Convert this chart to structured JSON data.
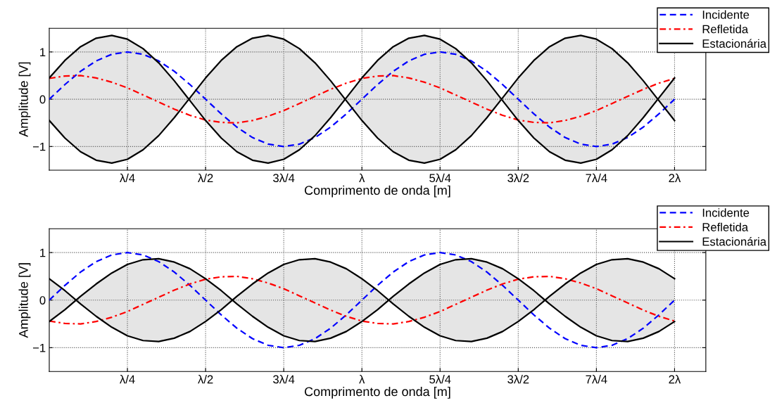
{
  "chart_data": [
    {
      "type": "line",
      "xlabel": "Comprimento de onda [m]",
      "ylabel": "Amplitude [V]",
      "categories": [
        null,
        null,
        null,
        null,
        null,
        "λ/4",
        null,
        null,
        null,
        null,
        "λ/2",
        null,
        null,
        null,
        null,
        "3λ/4",
        null,
        null,
        null,
        null,
        "λ",
        null,
        null,
        null,
        null,
        "5λ/4",
        null,
        null,
        null,
        null,
        "3λ/2",
        null,
        null,
        null,
        null,
        "7λ/4",
        null,
        null,
        null,
        null,
        "2λ",
        null,
        null
      ],
      "ylim": [
        -1.5,
        1.5
      ],
      "yticks": [
        {
          "value": -1,
          "label": "−1"
        },
        0,
        1
      ],
      "grid": true,
      "legend": "top right",
      "series": [
        {
          "name": "Incidente",
          "color": "#0000ff",
          "line_style": "dashed",
          "values": [
            0,
            0.31,
            0.59,
            0.81,
            0.95,
            1,
            0.95,
            0.81,
            0.59,
            0.31,
            0,
            -0.31,
            -0.59,
            -0.81,
            -0.95,
            -1,
            -0.95,
            -0.81,
            -0.59,
            -0.31,
            0,
            0.31,
            0.59,
            0.81,
            0.95,
            1,
            0.95,
            0.81,
            0.59,
            0.31,
            0,
            -0.31,
            -0.59,
            -0.81,
            -0.95,
            -1,
            -0.95,
            -0.81,
            -0.59,
            -0.31,
            0,
            null,
            null
          ]
        },
        {
          "name": "Refletida",
          "color": "#ff0000",
          "line_style": "dashdot",
          "values": [
            0.44,
            0.49,
            0.5,
            0.45,
            0.36,
            0.24,
            0.09,
            -0.06,
            -0.21,
            -0.34,
            -0.44,
            -0.49,
            -0.5,
            -0.45,
            -0.36,
            -0.24,
            -0.09,
            0.06,
            0.21,
            0.34,
            0.44,
            0.49,
            0.5,
            0.45,
            0.36,
            0.24,
            0.09,
            -0.06,
            -0.21,
            -0.34,
            -0.44,
            -0.49,
            -0.5,
            -0.45,
            -0.36,
            -0.24,
            -0.09,
            0.06,
            0.21,
            0.34,
            0.44,
            null,
            null
          ]
        },
        {
          "name": "Estacionária",
          "color": "#000000",
          "line_style": "solid",
          "values": [
            0.45,
            0.82,
            1.11,
            1.29,
            1.35,
            1.27,
            1.07,
            0.77,
            0.39,
            -0.03,
            -0.45,
            -0.82,
            -1.11,
            -1.29,
            -1.35,
            -1.27,
            -1.07,
            -0.77,
            -0.39,
            0.03,
            0.45,
            0.82,
            1.11,
            1.29,
            1.35,
            1.27,
            1.07,
            0.77,
            0.39,
            -0.03,
            -0.45,
            -0.82,
            -1.11,
            -1.29,
            -1.35,
            -1.27,
            -1.07,
            -0.77,
            -0.39,
            0.03,
            0.45,
            null,
            null
          ],
          "upper": [
            0.45,
            0.82,
            1.11,
            1.29,
            1.35,
            1.27,
            1.07,
            0.77,
            0.39,
            -0.03,
            -0.45,
            -0.82,
            -1.11,
            -1.29,
            -1.35,
            -1.27,
            -1.07,
            -0.77,
            -0.39,
            0.03,
            0.45,
            0.82,
            1.11,
            1.29,
            1.35,
            1.27,
            1.07,
            0.77,
            0.39,
            -0.03,
            -0.45,
            -0.82,
            -1.11,
            -1.29,
            -1.35,
            -1.27,
            -1.07,
            -0.77,
            -0.39,
            0.03,
            0.45,
            null,
            null
          ],
          "lower": [
            -0.45,
            -0.82,
            -1.11,
            -1.29,
            -1.35,
            -1.27,
            -1.07,
            -0.77,
            -0.39,
            0.03,
            0.45,
            0.82,
            1.11,
            1.29,
            1.35,
            1.27,
            1.07,
            0.77,
            0.39,
            -0.03,
            -0.45,
            -0.82,
            -1.11,
            -1.29,
            -1.35,
            -1.27,
            -1.07,
            -0.77,
            -0.39,
            0.03,
            0.45,
            0.82,
            1.11,
            1.29,
            1.35,
            1.27,
            1.07,
            0.77,
            0.39,
            -0.03,
            -0.45,
            null,
            null
          ]
        },
        {
          "color": "#000000",
          "line_style": "solid",
          "values": [
            -0.45,
            -0.82,
            -1.11,
            -1.29,
            -1.35,
            -1.27,
            -1.07,
            -0.77,
            -0.39,
            0.03,
            0.45,
            0.82,
            1.11,
            1.29,
            1.35,
            1.27,
            1.07,
            0.77,
            0.39,
            -0.03,
            -0.45,
            -0.82,
            -1.11,
            -1.29,
            -1.35,
            -1.27,
            -1.07,
            -0.77,
            -0.39,
            0.03,
            0.45,
            0.82,
            1.11,
            1.29,
            1.35,
            1.27,
            1.07,
            0.77,
            0.39,
            -0.03,
            -0.45,
            null,
            null
          ]
        }
      ]
    },
    {
      "type": "line",
      "xlabel": "Comprimento de onda [m]",
      "ylabel": "Amplitude [V]",
      "categories": [
        null,
        null,
        null,
        null,
        null,
        "λ/4",
        null,
        null,
        null,
        null,
        "λ/2",
        null,
        null,
        null,
        null,
        "3λ/4",
        null,
        null,
        null,
        null,
        "λ",
        null,
        null,
        null,
        null,
        "5λ/4",
        null,
        null,
        null,
        null,
        "3λ/2",
        null,
        null,
        null,
        null,
        "7λ/4",
        null,
        null,
        null,
        null,
        "2λ",
        null,
        null
      ],
      "ylim": [
        -1.5,
        1.5
      ],
      "yticks": [
        {
          "value": -1,
          "label": "−1"
        },
        0,
        1
      ],
      "grid": true,
      "legend": "top right",
      "series": [
        {
          "name": "Incidente",
          "color": "#0000ff",
          "line_style": "dashed",
          "values": [
            0,
            0.31,
            0.59,
            0.81,
            0.95,
            1,
            0.95,
            0.81,
            0.59,
            0.31,
            0,
            -0.31,
            -0.59,
            -0.81,
            -0.95,
            -1,
            -0.95,
            -0.81,
            -0.59,
            -0.31,
            0,
            0.31,
            0.59,
            0.81,
            0.95,
            1,
            0.95,
            0.81,
            0.59,
            0.31,
            0,
            -0.31,
            -0.59,
            -0.81,
            -0.95,
            -1,
            -0.95,
            -0.81,
            -0.59,
            -0.31,
            0,
            null,
            null
          ]
        },
        {
          "name": "Refletida",
          "color": "#ff0000",
          "line_style": "dashdot",
          "values": [
            -0.44,
            -0.49,
            -0.5,
            -0.45,
            -0.36,
            -0.24,
            -0.09,
            0.06,
            0.21,
            0.34,
            0.44,
            0.49,
            0.5,
            0.45,
            0.36,
            0.24,
            0.09,
            -0.06,
            -0.21,
            -0.34,
            -0.44,
            -0.49,
            -0.5,
            -0.45,
            -0.36,
            -0.24,
            -0.09,
            0.06,
            0.21,
            0.34,
            0.44,
            0.49,
            0.5,
            0.45,
            0.36,
            0.24,
            0.09,
            -0.06,
            -0.21,
            -0.34,
            -0.44,
            null,
            null
          ]
        },
        {
          "name": "Estacionária",
          "color": "#000000",
          "line_style": "solid",
          "values": [
            0.45,
            0.2,
            -0.08,
            -0.34,
            -0.57,
            -0.75,
            -0.85,
            -0.87,
            -0.8,
            -0.66,
            -0.45,
            -0.2,
            0.08,
            0.34,
            0.57,
            0.75,
            0.85,
            0.87,
            0.8,
            0.66,
            0.45,
            0.2,
            -0.08,
            -0.34,
            -0.57,
            -0.75,
            -0.85,
            -0.87,
            -0.8,
            -0.66,
            -0.45,
            -0.2,
            0.08,
            0.34,
            0.57,
            0.75,
            0.85,
            0.87,
            0.8,
            0.66,
            0.45,
            null,
            null
          ],
          "upper": [
            0.45,
            0.2,
            -0.08,
            -0.34,
            -0.57,
            -0.75,
            -0.85,
            -0.87,
            -0.8,
            -0.66,
            -0.45,
            -0.2,
            0.08,
            0.34,
            0.57,
            0.75,
            0.85,
            0.87,
            0.8,
            0.66,
            0.45,
            0.2,
            -0.08,
            -0.34,
            -0.57,
            -0.75,
            -0.85,
            -0.87,
            -0.8,
            -0.66,
            -0.45,
            -0.2,
            0.08,
            0.34,
            0.57,
            0.75,
            0.85,
            0.87,
            0.8,
            0.66,
            0.45,
            null,
            null
          ],
          "lower": [
            -0.45,
            -0.2,
            0.08,
            0.34,
            0.57,
            0.75,
            0.85,
            0.87,
            0.8,
            0.66,
            0.45,
            0.2,
            -0.08,
            -0.34,
            -0.57,
            -0.75,
            -0.85,
            -0.87,
            -0.8,
            -0.66,
            -0.45,
            -0.2,
            0.08,
            0.34,
            0.57,
            0.75,
            0.85,
            0.87,
            0.8,
            0.66,
            0.45,
            0.2,
            -0.08,
            -0.34,
            -0.57,
            -0.75,
            -0.85,
            -0.87,
            -0.8,
            -0.66,
            -0.45,
            null,
            null
          ]
        },
        {
          "color": "#000000",
          "line_style": "solid",
          "values": [
            -0.45,
            -0.2,
            0.08,
            0.34,
            0.57,
            0.75,
            0.85,
            0.87,
            0.8,
            0.66,
            0.45,
            0.2,
            -0.08,
            -0.34,
            -0.57,
            -0.75,
            -0.85,
            -0.87,
            -0.8,
            -0.66,
            -0.45,
            -0.2,
            0.08,
            0.34,
            0.57,
            0.75,
            0.85,
            0.87,
            0.8,
            0.66,
            0.45,
            0.2,
            -0.08,
            -0.34,
            -0.57,
            -0.75,
            -0.85,
            -0.87,
            -0.8,
            -0.66,
            -0.45,
            null,
            null
          ]
        }
      ]
    }
  ]
}
